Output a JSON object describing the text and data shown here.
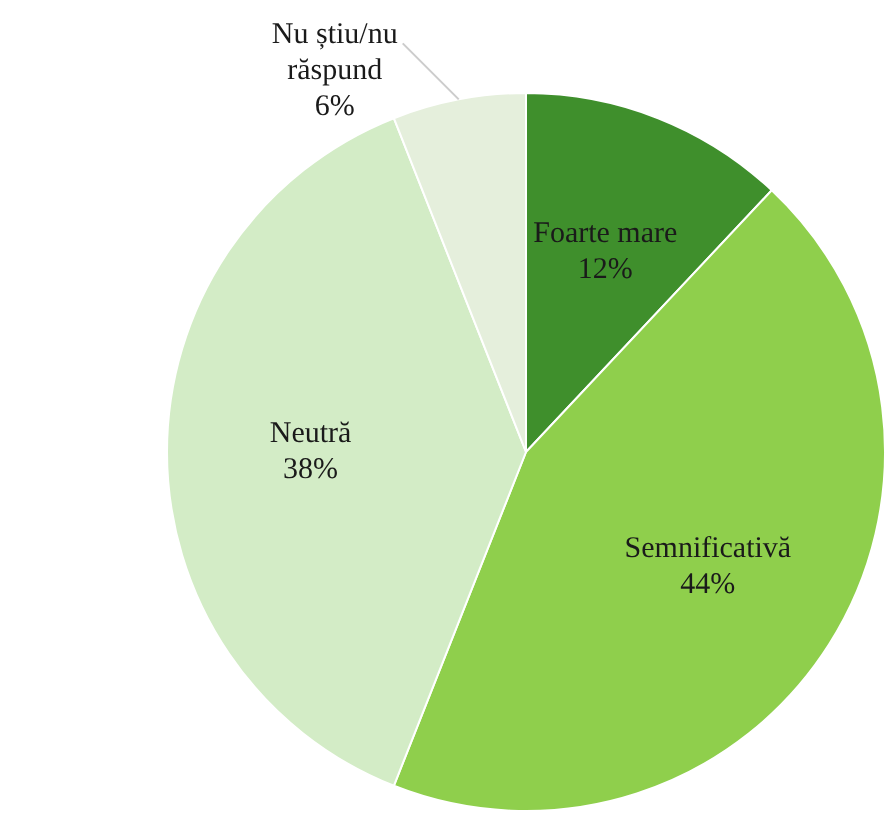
{
  "chart_data": {
    "type": "pie",
    "categories": [
      "Foarte mare",
      "Semnificativă",
      "Neutră",
      "Nu știu/nu răspund"
    ],
    "values": [
      12,
      44,
      38,
      6
    ],
    "colors": [
      "#3f8f2c",
      "#8fcf4c",
      "#d3ecc6",
      "#e5efdc"
    ],
    "value_labels": [
      "12%",
      "44%",
      "38%",
      "6%"
    ],
    "legend": false
  }
}
